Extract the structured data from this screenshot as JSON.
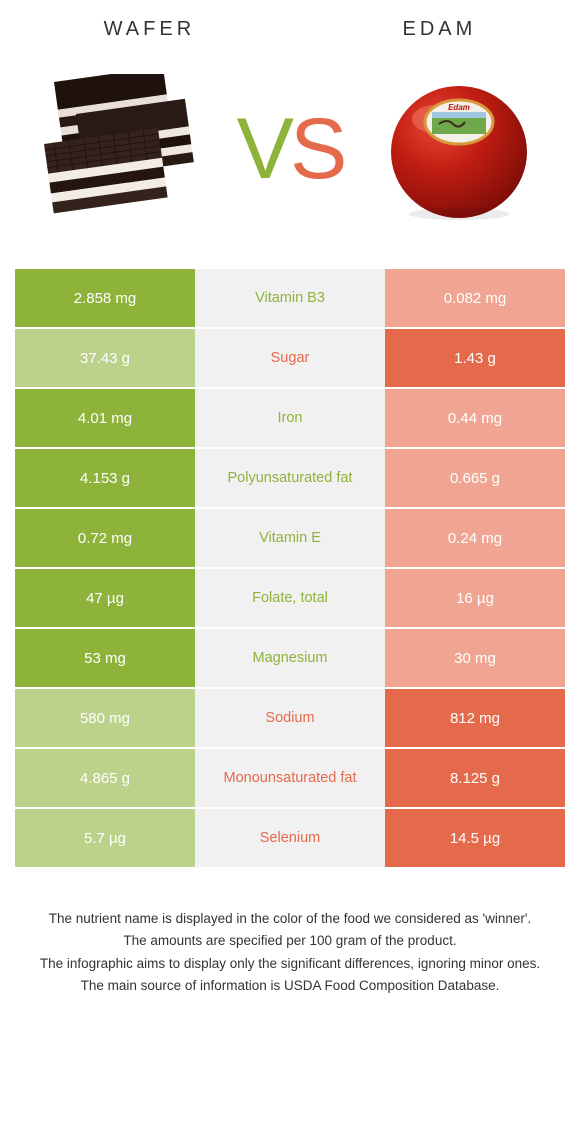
{
  "colors": {
    "left": "#8eb33b",
    "right": "#e56a4b",
    "left_dim": "#bcd18a",
    "right_dim": "#f0a593",
    "mid_bg": "#f1f1f1",
    "vs_v": "#8eb33b",
    "vs_s": "#e56a4b",
    "wafer_dark": "#2a1a16",
    "wafer_cream": "#e8e0d8",
    "edam_red": "#b5160f",
    "edam_highlight": "#e03a2a"
  },
  "header": {
    "left_title": "Wafer",
    "right_title": "Edam"
  },
  "vs": {
    "v": "V",
    "s": "S"
  },
  "rows": [
    {
      "label": "Vitamin B3",
      "left": "2.858 mg",
      "right": "0.082 mg",
      "winner": "left"
    },
    {
      "label": "Sugar",
      "left": "37.43 g",
      "right": "1.43 g",
      "winner": "right"
    },
    {
      "label": "Iron",
      "left": "4.01 mg",
      "right": "0.44 mg",
      "winner": "left"
    },
    {
      "label": "Polyunsaturated fat",
      "left": "4.153 g",
      "right": "0.665 g",
      "winner": "left"
    },
    {
      "label": "Vitamin E",
      "left": "0.72 mg",
      "right": "0.24 mg",
      "winner": "left"
    },
    {
      "label": "Folate, total",
      "left": "47 µg",
      "right": "16 µg",
      "winner": "left"
    },
    {
      "label": "Magnesium",
      "left": "53 mg",
      "right": "30 mg",
      "winner": "left"
    },
    {
      "label": "Sodium",
      "left": "580 mg",
      "right": "812 mg",
      "winner": "right"
    },
    {
      "label": "Monounsaturated fat",
      "left": "4.865 g",
      "right": "8.125 g",
      "winner": "right"
    },
    {
      "label": "Selenium",
      "left": "5.7 µg",
      "right": "14.5 µg",
      "winner": "right"
    }
  ],
  "footer": {
    "l1": "The nutrient name is displayed in the color of the food we considered as 'winner'.",
    "l2": "The amounts are specified per 100 gram of the product.",
    "l3": "The infographic aims to display only the significant differences, ignoring minor ones.",
    "l4": "The main source of information is USDA Food Composition Database."
  }
}
